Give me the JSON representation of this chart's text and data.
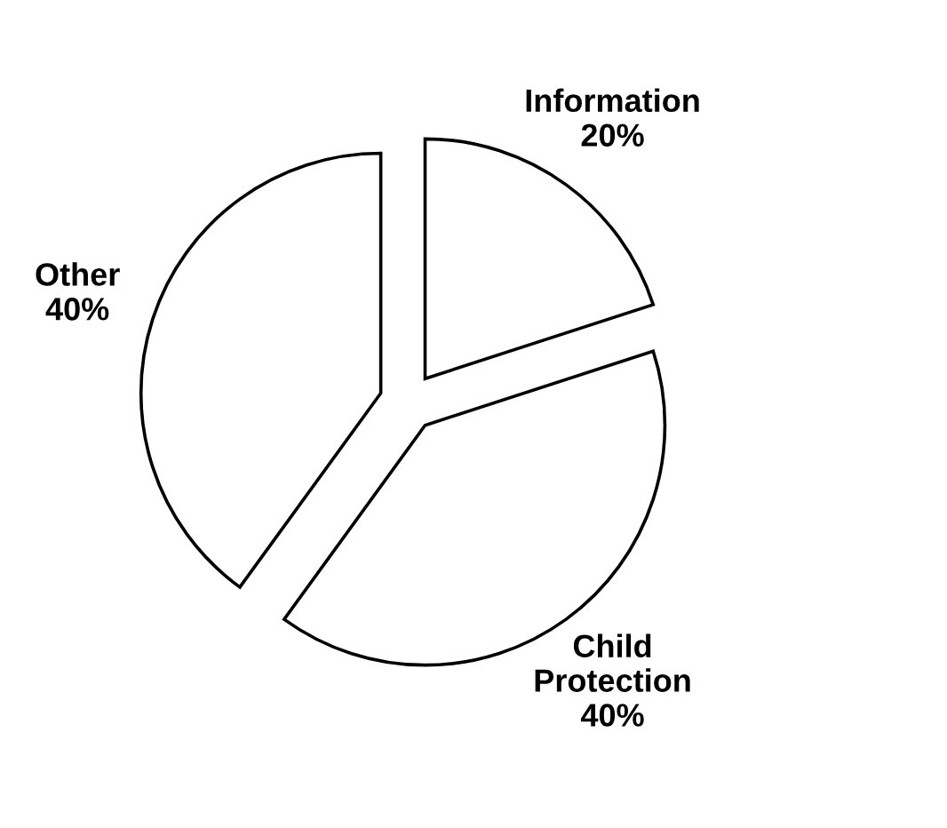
{
  "chart_data": {
    "type": "pie",
    "categories": [
      "Information",
      "Child Protection",
      "Other"
    ],
    "values": [
      20,
      40,
      40
    ],
    "colors": [
      "#ffffff",
      "#ffffff",
      "#ffffff"
    ],
    "value_labels": [
      "20%",
      "40%",
      "40%"
    ]
  }
}
